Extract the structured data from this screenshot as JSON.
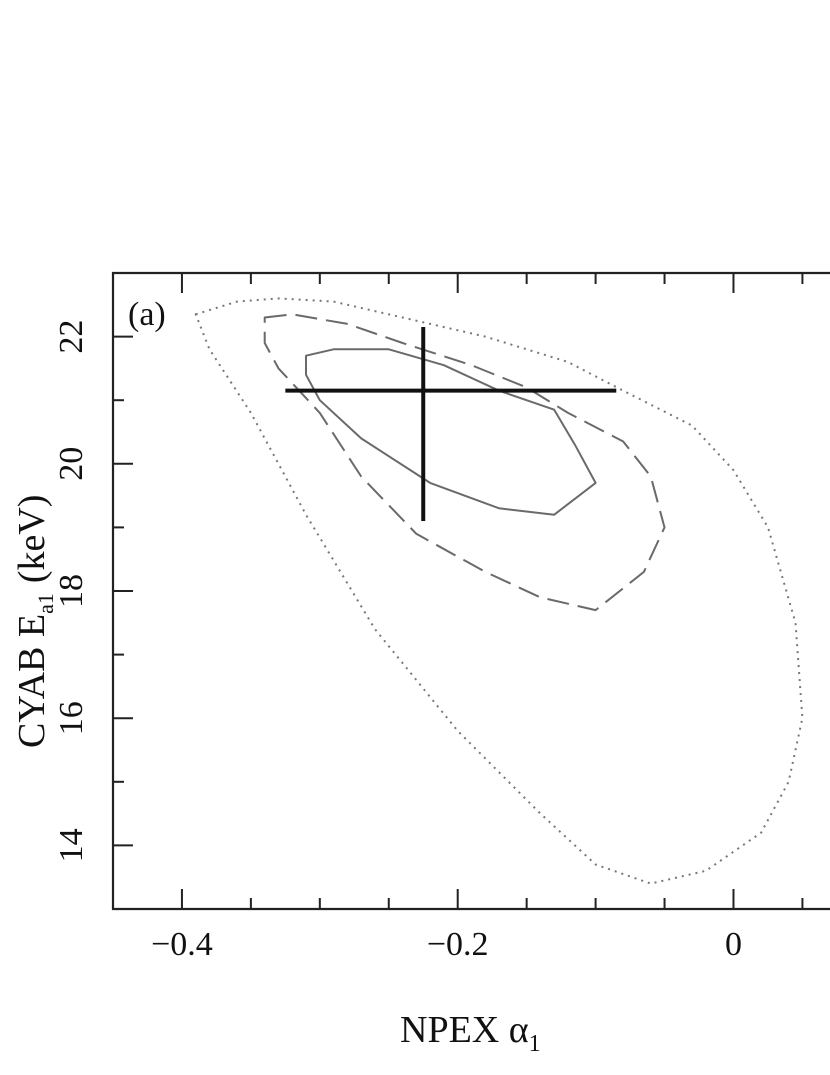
{
  "chart_data": {
    "type": "scatter",
    "panel_label": "(a)",
    "xlabel": {
      "main": "NPEX α",
      "sub": "1"
    },
    "ylabel": {
      "main": "CYAB E",
      "sub": "a1",
      "unit": "(keV)"
    },
    "xlim": [
      -0.45,
      0.07
    ],
    "ylim": [
      13.0,
      23.0
    ],
    "x_ticks": [
      -0.4,
      -0.2,
      0
    ],
    "x_tick_labels": [
      "−0.4",
      "−0.2",
      "0"
    ],
    "y_ticks": [
      14,
      16,
      18,
      20,
      22
    ],
    "y_tick_labels": [
      "14",
      "16",
      "18",
      "20",
      "22"
    ],
    "best_fit": {
      "x": -0.225,
      "y": 21.15,
      "x_range": [
        -0.325,
        -0.085
      ],
      "y_range": [
        19.1,
        22.15
      ]
    },
    "contours": [
      {
        "style": "solid",
        "points": [
          [
            -0.31,
            21.7
          ],
          [
            -0.29,
            21.8
          ],
          [
            -0.25,
            21.8
          ],
          [
            -0.21,
            21.55
          ],
          [
            -0.17,
            21.15
          ],
          [
            -0.13,
            20.85
          ],
          [
            -0.115,
            20.3
          ],
          [
            -0.1,
            19.7
          ],
          [
            -0.13,
            19.2
          ],
          [
            -0.17,
            19.3
          ],
          [
            -0.22,
            19.7
          ],
          [
            -0.27,
            20.4
          ],
          [
            -0.3,
            21.0
          ],
          [
            -0.31,
            21.4
          ]
        ]
      },
      {
        "style": "dashed",
        "points": [
          [
            -0.34,
            22.3
          ],
          [
            -0.32,
            22.35
          ],
          [
            -0.28,
            22.2
          ],
          [
            -0.24,
            21.9
          ],
          [
            -0.19,
            21.55
          ],
          [
            -0.15,
            21.2
          ],
          [
            -0.12,
            20.8
          ],
          [
            -0.08,
            20.35
          ],
          [
            -0.06,
            19.8
          ],
          [
            -0.05,
            19.0
          ],
          [
            -0.065,
            18.3
          ],
          [
            -0.1,
            17.7
          ],
          [
            -0.14,
            17.9
          ],
          [
            -0.18,
            18.3
          ],
          [
            -0.23,
            18.9
          ],
          [
            -0.27,
            19.8
          ],
          [
            -0.3,
            20.8
          ],
          [
            -0.33,
            21.5
          ],
          [
            -0.34,
            21.9
          ]
        ]
      },
      {
        "style": "dotted",
        "points": [
          [
            -0.39,
            22.35
          ],
          [
            -0.36,
            22.55
          ],
          [
            -0.33,
            22.6
          ],
          [
            -0.29,
            22.55
          ],
          [
            -0.24,
            22.3
          ],
          [
            -0.18,
            22.0
          ],
          [
            -0.12,
            21.6
          ],
          [
            -0.08,
            21.15
          ],
          [
            -0.03,
            20.6
          ],
          [
            0.0,
            19.9
          ],
          [
            0.025,
            19.0
          ],
          [
            0.045,
            17.5
          ],
          [
            0.05,
            16.0
          ],
          [
            0.04,
            15.0
          ],
          [
            0.02,
            14.2
          ],
          [
            -0.02,
            13.6
          ],
          [
            -0.06,
            13.4
          ],
          [
            -0.1,
            13.7
          ],
          [
            -0.14,
            14.5
          ],
          [
            -0.2,
            15.8
          ],
          [
            -0.26,
            17.4
          ],
          [
            -0.31,
            19.2
          ],
          [
            -0.35,
            20.8
          ],
          [
            -0.38,
            21.8
          ]
        ]
      }
    ]
  }
}
